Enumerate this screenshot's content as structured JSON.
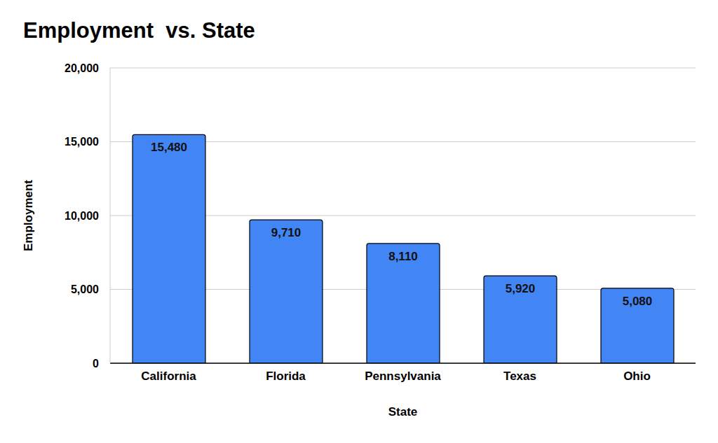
{
  "chart_data": {
    "type": "bar",
    "title": "Employment  vs. State",
    "x_label": "State",
    "y_label": "Employment",
    "categories": [
      "California",
      "Florida",
      "Pennsylvania",
      "Texas",
      "Ohio"
    ],
    "values": [
      15480,
      9710,
      8110,
      5920,
      5080
    ],
    "value_labels": [
      "15,480",
      "9,710",
      "8,110",
      "5,920",
      "5,080"
    ],
    "color": "#4285f4",
    "ylim": [
      0,
      20000
    ],
    "yticks": [
      0,
      {
        "value": 5000,
        "label": "5,000"
      },
      {
        "value": 10000,
        "label": "10,000"
      },
      {
        "value": 15000,
        "label": "15,000"
      },
      {
        "value": 20000,
        "label": "20,000"
      }
    ],
    "grid": true,
    "data_labels": true
  }
}
